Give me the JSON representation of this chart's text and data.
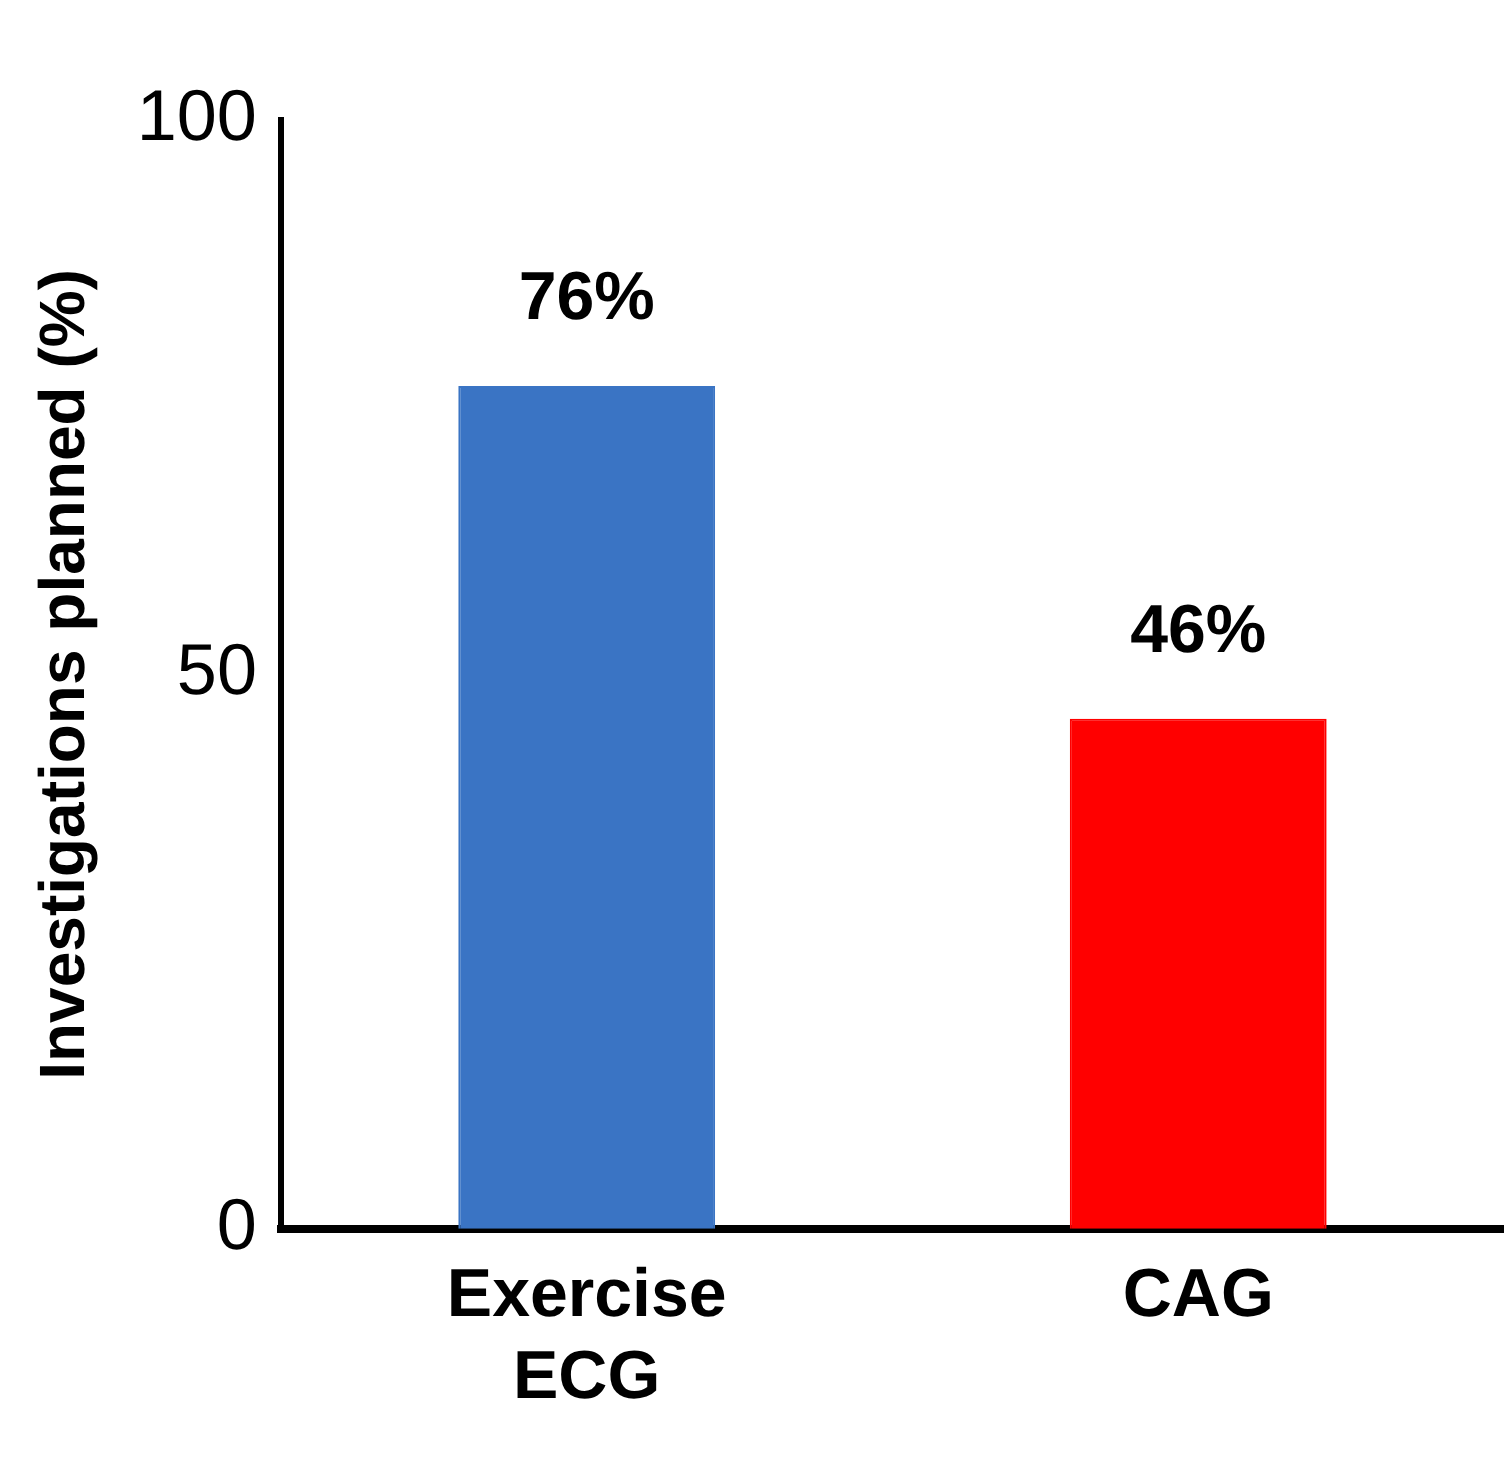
{
  "chart_data": {
    "type": "bar",
    "ylabel": "Investigations planned (%)",
    "categories": [
      "Exercise ECG",
      "CAG"
    ],
    "values": [
      76,
      46
    ],
    "colors": [
      "#3a74c4",
      "#ff0000"
    ],
    "value_labels": [
      "76%",
      "46%"
    ],
    "ylim": [
      0,
      100
    ],
    "yticks": [
      0,
      50,
      100
    ],
    "grid": false,
    "legend": false
  }
}
